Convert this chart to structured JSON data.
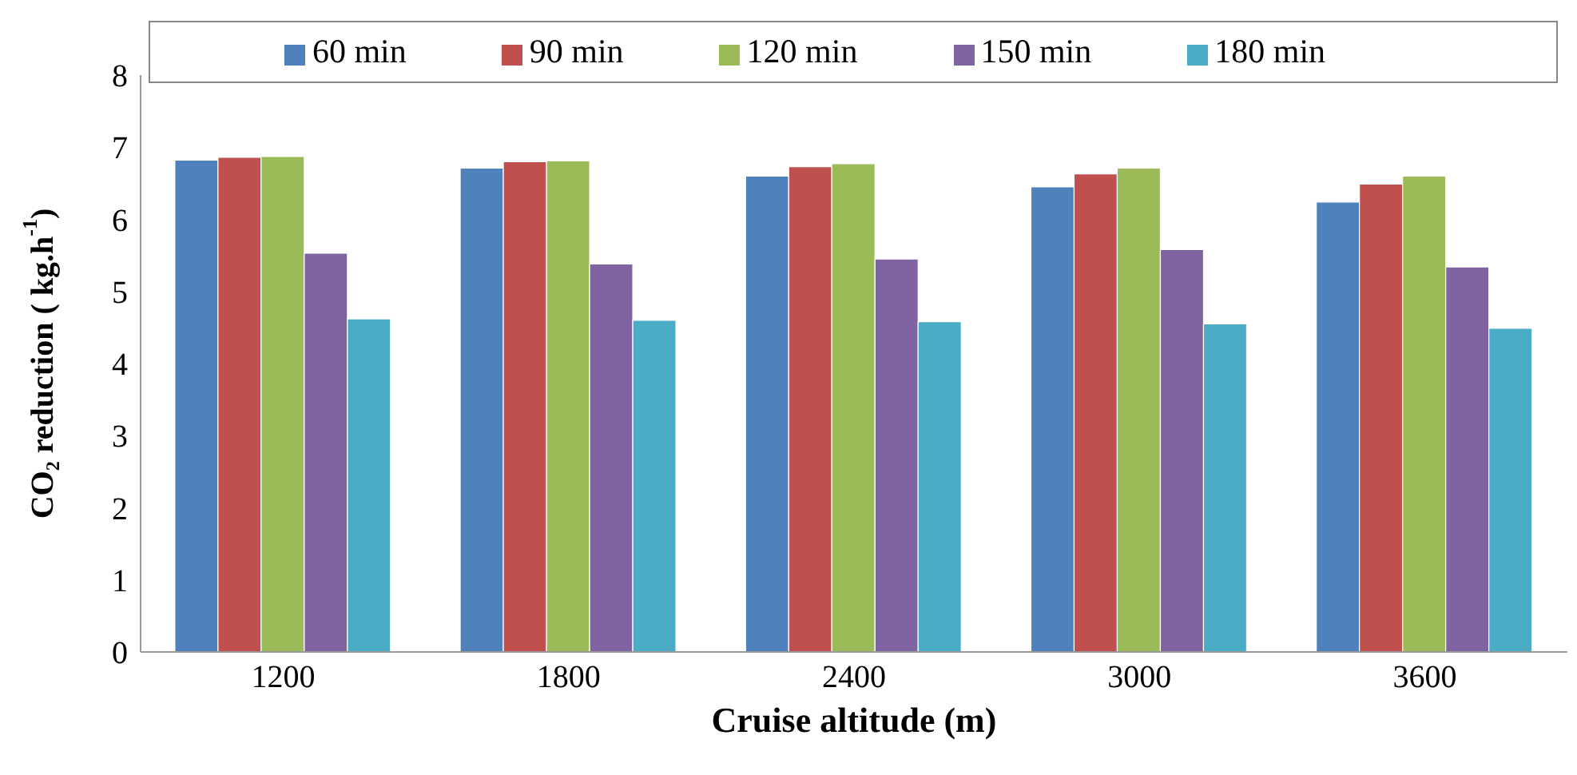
{
  "chart_data": {
    "type": "bar",
    "categories": [
      "1200",
      "1800",
      "2400",
      "3000",
      "3600"
    ],
    "series": [
      {
        "name": "60 min",
        "color": "#4f81bd",
        "values": [
          6.82,
          6.71,
          6.6,
          6.45,
          6.24
        ]
      },
      {
        "name": "90 min",
        "color": "#c0504d",
        "values": [
          6.86,
          6.8,
          6.73,
          6.63,
          6.49
        ]
      },
      {
        "name": "120 min",
        "color": "#9bbb59",
        "values": [
          6.87,
          6.81,
          6.77,
          6.71,
          6.6
        ]
      },
      {
        "name": "150 min",
        "color": "#8064a2",
        "values": [
          5.53,
          5.38,
          5.45,
          5.58,
          5.34
        ]
      },
      {
        "name": "180 min",
        "color": "#4bacc6",
        "values": [
          4.62,
          4.6,
          4.58,
          4.55,
          4.49
        ]
      }
    ],
    "xlabel": "Cruise altitude (m)",
    "ylabel": "CO₂ reduction ( kg.h$^{-1}$)",
    "ylim": [
      0,
      8
    ],
    "yticks": [
      0,
      1,
      2,
      3,
      4,
      5,
      6,
      7,
      8
    ],
    "grid": false,
    "legend": "top"
  }
}
